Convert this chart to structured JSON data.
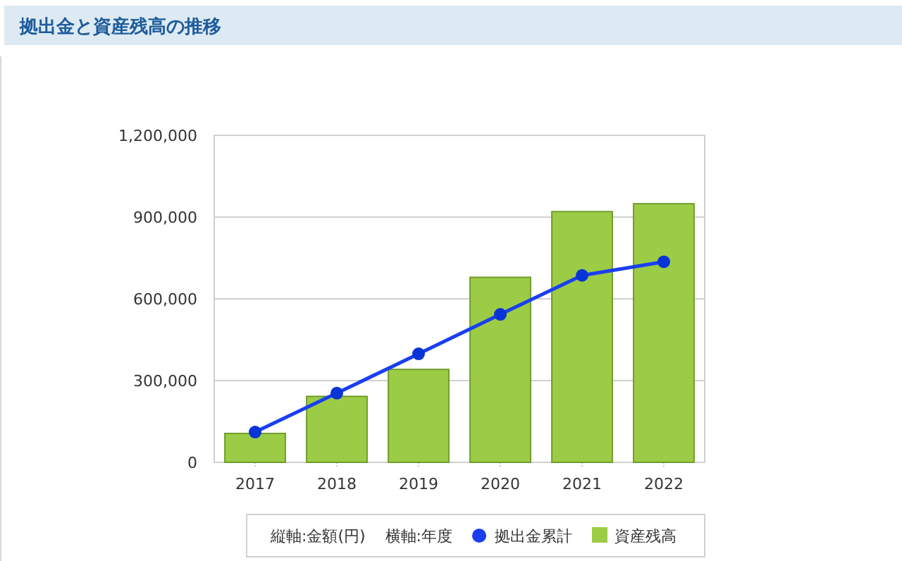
{
  "chart_data": {
    "type": "bar",
    "title": "拠出金と資産残高の推移",
    "annotations": [
      "縦軸:金額(円)",
      "横軸:年度"
    ],
    "categories": [
      "2017",
      "2018",
      "2019",
      "2020",
      "2021",
      "2022"
    ],
    "series": [
      {
        "name": "資産残高",
        "color": "#9ccc45",
        "values": [
          106000,
          242000,
          341000,
          679000,
          920000,
          949000
        ]
      },
      {
        "name": "拠出金累計",
        "type": "line",
        "color": "#1a3ff0",
        "marker": "circle",
        "values": [
          111000,
          254000,
          398000,
          543000,
          686000,
          736000
        ]
      }
    ],
    "ylim": [
      0,
      1200000
    ],
    "yticks": [
      {
        "value": 0,
        "label": "0"
      },
      {
        "value": 300000,
        "label": "300,000"
      },
      {
        "value": 600000,
        "label": "600,000"
      },
      {
        "value": 900000,
        "label": "900,000"
      },
      {
        "value": 1200000,
        "label": "1,200,000"
      }
    ],
    "grid": "y",
    "legend": "bottom"
  }
}
